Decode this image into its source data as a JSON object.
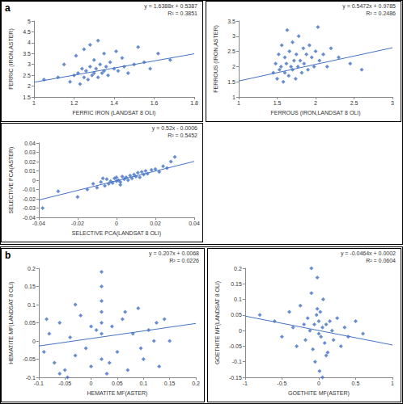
{
  "chart_data": [
    {
      "type": "scatter",
      "title": "a",
      "x_label": "FERRIC IRON (LANDSAT 8 OLI)",
      "y_label": "FERRIC (IRON,ASTER)",
      "annotations": [
        "y = 1.6388x + 0.5387",
        "R² = 0.3851"
      ],
      "trendline": {
        "slope": 1.6388,
        "intercept": 0.5387
      },
      "color": "#4472c4",
      "marker": "diamond",
      "grid": false,
      "xlim": [
        1,
        1.8
      ],
      "xticks": [
        1,
        1.2,
        1.4,
        1.6,
        1.8
      ],
      "ylim": [
        1.5,
        5
      ],
      "yticks": [
        1.5,
        2,
        2.5,
        3,
        3.5,
        4,
        4.5,
        5
      ],
      "x": [
        1.05,
        1.12,
        1.15,
        1.18,
        1.2,
        1.21,
        1.22,
        1.23,
        1.24,
        1.25,
        1.25,
        1.26,
        1.27,
        1.28,
        1.28,
        1.29,
        1.3,
        1.3,
        1.31,
        1.32,
        1.32,
        1.33,
        1.34,
        1.35,
        1.35,
        1.36,
        1.37,
        1.38,
        1.4,
        1.41,
        1.42,
        1.44,
        1.45,
        1.47,
        1.5,
        1.52,
        1.55,
        1.58,
        1.62,
        1.68
      ],
      "values": [
        2.3,
        2.4,
        3.0,
        2.2,
        2.5,
        3.4,
        2.6,
        2.1,
        2.8,
        2.4,
        3.7,
        2.7,
        2.3,
        2.9,
        3.9,
        2.5,
        2.6,
        3.2,
        2.8,
        2.4,
        4.1,
        3.0,
        2.6,
        2.7,
        3.5,
        2.9,
        2.5,
        3.1,
        2.8,
        3.6,
        2.7,
        3.3,
        2.9,
        2.6,
        3.0,
        3.8,
        3.1,
        2.8,
        3.5,
        3.2
      ]
    },
    {
      "type": "scatter",
      "x_label": "FERROUS (IRON,LANDSAT 8 OLI)",
      "y_label": "FERROUS (IRON,ASTER)",
      "annotations": [
        "y = 0.5472x + 0.9785",
        "R² = 0.2486"
      ],
      "trendline": {
        "slope": 0.5472,
        "intercept": 0.9785
      },
      "color": "#4472c4",
      "marker": "diamond",
      "grid": false,
      "xlim": [
        1,
        3
      ],
      "xticks": [
        1,
        1.5,
        2,
        2.5,
        3
      ],
      "ylim": [
        1,
        3.5
      ],
      "yticks": [
        1,
        1.5,
        2,
        2.5,
        3,
        3.5
      ],
      "x": [
        1.45,
        1.48,
        1.5,
        1.52,
        1.53,
        1.55,
        1.56,
        1.58,
        1.6,
        1.6,
        1.62,
        1.63,
        1.65,
        1.66,
        1.68,
        1.7,
        1.7,
        1.72,
        1.74,
        1.75,
        1.77,
        1.78,
        1.8,
        1.82,
        1.84,
        1.85,
        1.88,
        1.9,
        1.92,
        1.95,
        1.98,
        2.0,
        2.03,
        2.05,
        2.1,
        2.15,
        2.2,
        2.3,
        2.45,
        2.6
      ],
      "values": [
        1.8,
        2.1,
        1.6,
        2.4,
        1.9,
        2.0,
        2.7,
        1.5,
        1.8,
        2.3,
        2.1,
        3.2,
        1.7,
        2.5,
        2.0,
        1.9,
        2.8,
        2.2,
        1.6,
        2.4,
        2.0,
        3.0,
        2.2,
        1.8,
        2.6,
        2.1,
        2.4,
        1.9,
        2.7,
        2.3,
        2.0,
        2.5,
        3.3,
        2.2,
        2.4,
        2.0,
        2.6,
        2.3,
        2.1,
        1.9
      ]
    },
    {
      "type": "scatter",
      "x_label": "SELECTIVE PCA(LANDSAT 8 OLI)",
      "y_label": "SELECTIVE PCA(ASTER)",
      "annotations": [
        "y = 0.52x - 0.0006",
        "R² = 0.5452"
      ],
      "trendline": {
        "slope": 0.52,
        "intercept": -0.0006
      },
      "color": "#4472c4",
      "marker": "diamond",
      "grid": false,
      "xlim": [
        -0.04,
        0.04
      ],
      "xticks": [
        -0.04,
        -0.02,
        0,
        0.02,
        0.04
      ],
      "ylim": [
        -0.04,
        0.04
      ],
      "yticks": [
        -0.04,
        -0.03,
        -0.02,
        -0.01,
        0,
        0.01,
        0.02,
        0.03,
        0.04
      ],
      "x": [
        -0.038,
        -0.03,
        -0.02,
        -0.015,
        -0.012,
        -0.01,
        -0.008,
        -0.006,
        -0.005,
        -0.004,
        -0.003,
        -0.002,
        -0.001,
        0,
        0,
        0.001,
        0.002,
        0.003,
        0.004,
        0.005,
        0.006,
        0.007,
        0.008,
        0.009,
        0.01,
        0.011,
        0.012,
        0.013,
        0.014,
        0.015,
        0.016,
        0.018,
        0.02,
        0.022,
        0.024,
        0.026,
        0.028,
        0.03,
        0.002,
        -0.007
      ],
      "values": [
        -0.03,
        -0.012,
        -0.018,
        -0.01,
        -0.004,
        -0.008,
        -0.002,
        -0.006,
        0.001,
        -0.004,
        -0.001,
        -0.003,
        0.002,
        -0.001,
        0.003,
        0,
        -0.002,
        0.004,
        0.001,
        0.003,
        0,
        0.005,
        0.002,
        0.006,
        0.004,
        0.008,
        0.003,
        0.009,
        0.006,
        0.01,
        0.007,
        0.011,
        0.012,
        0.009,
        0.015,
        0.013,
        0.02,
        0.025,
        -0.005,
        0.002
      ]
    },
    {
      "type": "scatter",
      "title": "b",
      "x_label": "HEMATITE MF(ASTER)",
      "y_label": "HEMATITE MF(LANDSAT 8 OLI)",
      "annotations": [
        "y = 0.207x + 0.0068",
        "R² = 0.0226"
      ],
      "trendline": {
        "slope": 0.207,
        "intercept": 0.0068
      },
      "color": "#4472c4",
      "marker": "diamond",
      "grid": false,
      "xlim": [
        -0.1,
        0.2
      ],
      "xticks": [
        -0.1,
        -0.05,
        0,
        0.05,
        0.1,
        0.15,
        0.2
      ],
      "ylim": [
        -0.1,
        0.2
      ],
      "yticks": [
        -0.1,
        -0.05,
        0,
        0.05,
        0.1,
        0.15,
        0.2
      ],
      "x": [
        -0.09,
        -0.08,
        -0.07,
        -0.06,
        -0.05,
        -0.04,
        -0.03,
        -0.02,
        -0.01,
        0,
        0.01,
        0.02,
        0.02,
        0.02,
        0.02,
        0.02,
        0.02,
        0.02,
        0.03,
        0.04,
        0.05,
        0.06,
        0.07,
        0.08,
        0.09,
        0.1,
        0.11,
        0.12,
        0.13,
        0.14,
        -0.085,
        -0.06,
        -0.03,
        0,
        0.035,
        0.065,
        0.095,
        0.125,
        0.15,
        -0.045
      ],
      "values": [
        -0.03,
        0.02,
        -0.06,
        0.05,
        -0.08,
        0.01,
        -0.04,
        0.07,
        -0.02,
        -0.07,
        0.03,
        0.19,
        0.15,
        0.11,
        0.08,
        0.05,
        0.02,
        -0.05,
        -0.09,
        0.04,
        -0.03,
        0.06,
        -0.08,
        0.02,
        0.09,
        -0.05,
        0.03,
        0,
        -0.07,
        0.06,
        0.06,
        -0.09,
        0.1,
        0.04,
        -0.06,
        0.08,
        -0.02,
        0.05,
        0,
        -0.1
      ]
    },
    {
      "type": "scatter",
      "x_label": "GOETHITE MF(ASTER)",
      "y_label": "GOETHITE MF(LANDSAT 8 OLI)",
      "annotations": [
        "y = -0.0464x + 0.0002",
        "R² = 0.0604"
      ],
      "trendline": {
        "slope": -0.0464,
        "intercept": 0.0002
      },
      "color": "#4472c4",
      "marker": "diamond",
      "grid": false,
      "xlim": [
        -1,
        1
      ],
      "xticks": [
        -1,
        -0.5,
        0,
        0.5,
        1
      ],
      "ylim": [
        -0.15,
        0.2
      ],
      "yticks": [
        -0.15,
        -0.1,
        -0.05,
        0,
        0.05,
        0.1,
        0.15,
        0.2
      ],
      "x": [
        -0.8,
        -0.6,
        -0.5,
        -0.4,
        -0.35,
        -0.3,
        -0.25,
        -0.2,
        -0.18,
        -0.15,
        -0.12,
        -0.1,
        -0.08,
        -0.06,
        -0.05,
        -0.03,
        -0.02,
        0,
        0,
        0.01,
        0.02,
        0.03,
        0.05,
        0.06,
        0.08,
        0.1,
        0.12,
        0.15,
        0.18,
        0.2,
        0.25,
        0.3,
        0.35,
        0.4,
        0.5,
        0.6,
        -0.1,
        0.05,
        -0.02,
        0.1
      ],
      "values": [
        0.05,
        0.03,
        -0.02,
        0.06,
        0.01,
        -0.05,
        0.08,
        0.02,
        -0.03,
        0.04,
        0,
        0.12,
        -0.06,
        0.02,
        -0.1,
        0.05,
        0.17,
        -0.01,
        0.03,
        -0.13,
        0.06,
        -0.02,
        0.01,
        0.1,
        -0.04,
        0.02,
        -0.07,
        0.03,
        0,
        -0.03,
        0.04,
        -0.05,
        0.01,
        -0.02,
        0.03,
        -0.01,
        0.2,
        -0.15,
        0.07,
        -0.08
      ]
    }
  ]
}
